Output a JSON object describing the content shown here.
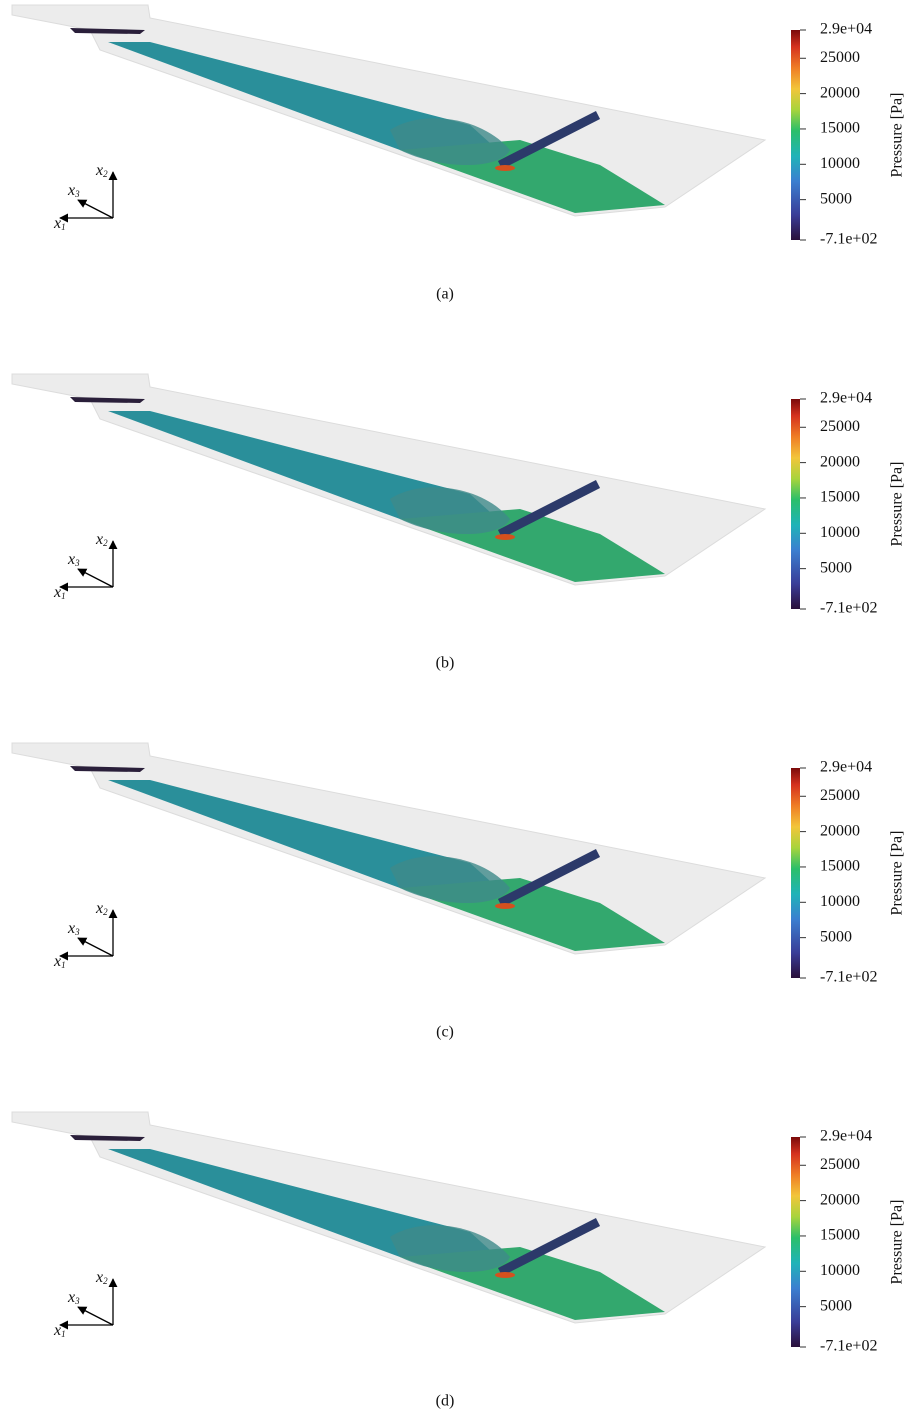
{
  "panels": [
    {
      "label": "(a)"
    },
    {
      "label": "(b)"
    },
    {
      "label": "(c)"
    },
    {
      "label": "(d)"
    }
  ],
  "colorbar": {
    "title": "Pressure [Pa]",
    "range": [
      -710,
      29000
    ],
    "ticks": [
      {
        "value": 29000,
        "label": "2.9e+04"
      },
      25000,
      20000,
      15000,
      10000,
      5000,
      {
        "value": -710,
        "label": "-7.1e+02"
      }
    ]
  },
  "axes": [
    {
      "base": "x",
      "sub": "1"
    },
    {
      "base": "x",
      "sub": "2"
    },
    {
      "base": "x",
      "sub": "3"
    }
  ]
}
